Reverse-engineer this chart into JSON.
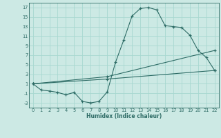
{
  "xlabel": "Humidex (Indice chaleur)",
  "background_color": "#cce9e4",
  "grid_color": "#a8d8d0",
  "line_color": "#2d6b65",
  "xlim": [
    -0.5,
    22.5
  ],
  "ylim": [
    -4,
    18
  ],
  "xticks": [
    0,
    1,
    2,
    3,
    4,
    5,
    6,
    7,
    8,
    9,
    10,
    11,
    12,
    13,
    14,
    15,
    16,
    17,
    18,
    19,
    20,
    21,
    22
  ],
  "yticks": [
    -3,
    -1,
    1,
    3,
    5,
    7,
    9,
    11,
    13,
    15,
    17
  ],
  "line1_x": [
    0,
    1,
    2,
    3,
    4,
    5,
    6,
    7,
    8,
    9,
    10,
    11,
    12,
    13,
    14,
    15,
    16,
    17,
    18,
    19,
    20,
    21,
    22
  ],
  "line1_y": [
    1,
    -0.3,
    -0.5,
    -0.8,
    -1.3,
    -0.8,
    -2.7,
    -3.0,
    -2.7,
    -0.7,
    5.5,
    10.2,
    15.2,
    16.8,
    17.0,
    16.5,
    13.2,
    13.0,
    12.8,
    11.2,
    8.0,
    6.5,
    3.8
  ],
  "line2_x": [
    0,
    9,
    22
  ],
  "line2_y": [
    1,
    2.5,
    8.0
  ],
  "line3_x": [
    0,
    9,
    22
  ],
  "line3_y": [
    1,
    2.0,
    3.8
  ]
}
